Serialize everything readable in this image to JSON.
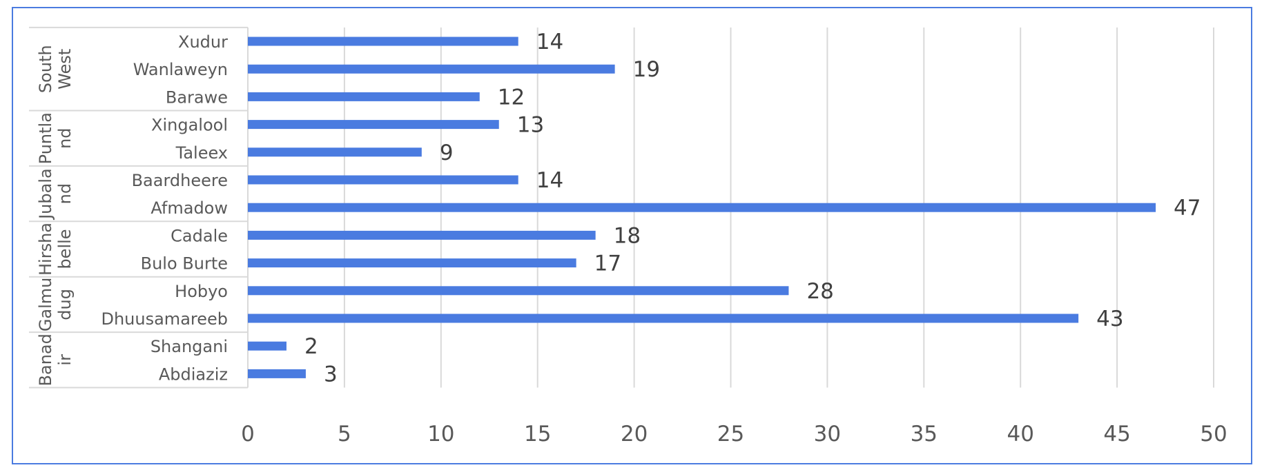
{
  "chart_data": {
    "type": "bar",
    "orientation": "horizontal",
    "title": "",
    "xlabel": "",
    "ylabel": "",
    "xlim": [
      0,
      50
    ],
    "x_ticks": [
      "0",
      "5",
      "10",
      "15",
      "20",
      "25",
      "30",
      "35",
      "40",
      "45",
      "50"
    ],
    "grid": "vertical",
    "legend": "none",
    "bar_color": "#4a7be0",
    "groups": [
      {
        "name": "South West",
        "lines": [
          "South",
          "West"
        ],
        "categories": [
          "Xudur",
          "Wanlaweyn",
          "Barawe"
        ],
        "values": [
          14,
          19,
          12
        ]
      },
      {
        "name": "Puntland",
        "lines": [
          "Puntla",
          "nd"
        ],
        "categories": [
          "Xingalool",
          "Taleex"
        ],
        "values": [
          13,
          9
        ]
      },
      {
        "name": "Jubaland",
        "lines": [
          "Jubala",
          "nd"
        ],
        "categories": [
          "Baardheere",
          "Afmadow"
        ],
        "values": [
          14,
          47
        ]
      },
      {
        "name": "Hirshabelle",
        "lines": [
          "Hirsha",
          "belle"
        ],
        "categories": [
          "Cadale",
          "Bulo Burte"
        ],
        "values": [
          18,
          17
        ]
      },
      {
        "name": "Galmudug",
        "lines": [
          "Galmu",
          "dug"
        ],
        "categories": [
          "Hobyo",
          "Dhuusamareeb"
        ],
        "values": [
          28,
          43
        ]
      },
      {
        "name": "Banadir",
        "lines": [
          "Banad",
          "ir"
        ],
        "categories": [
          "Shangani",
          "Abdiaziz"
        ],
        "values": [
          2,
          3
        ]
      }
    ]
  }
}
